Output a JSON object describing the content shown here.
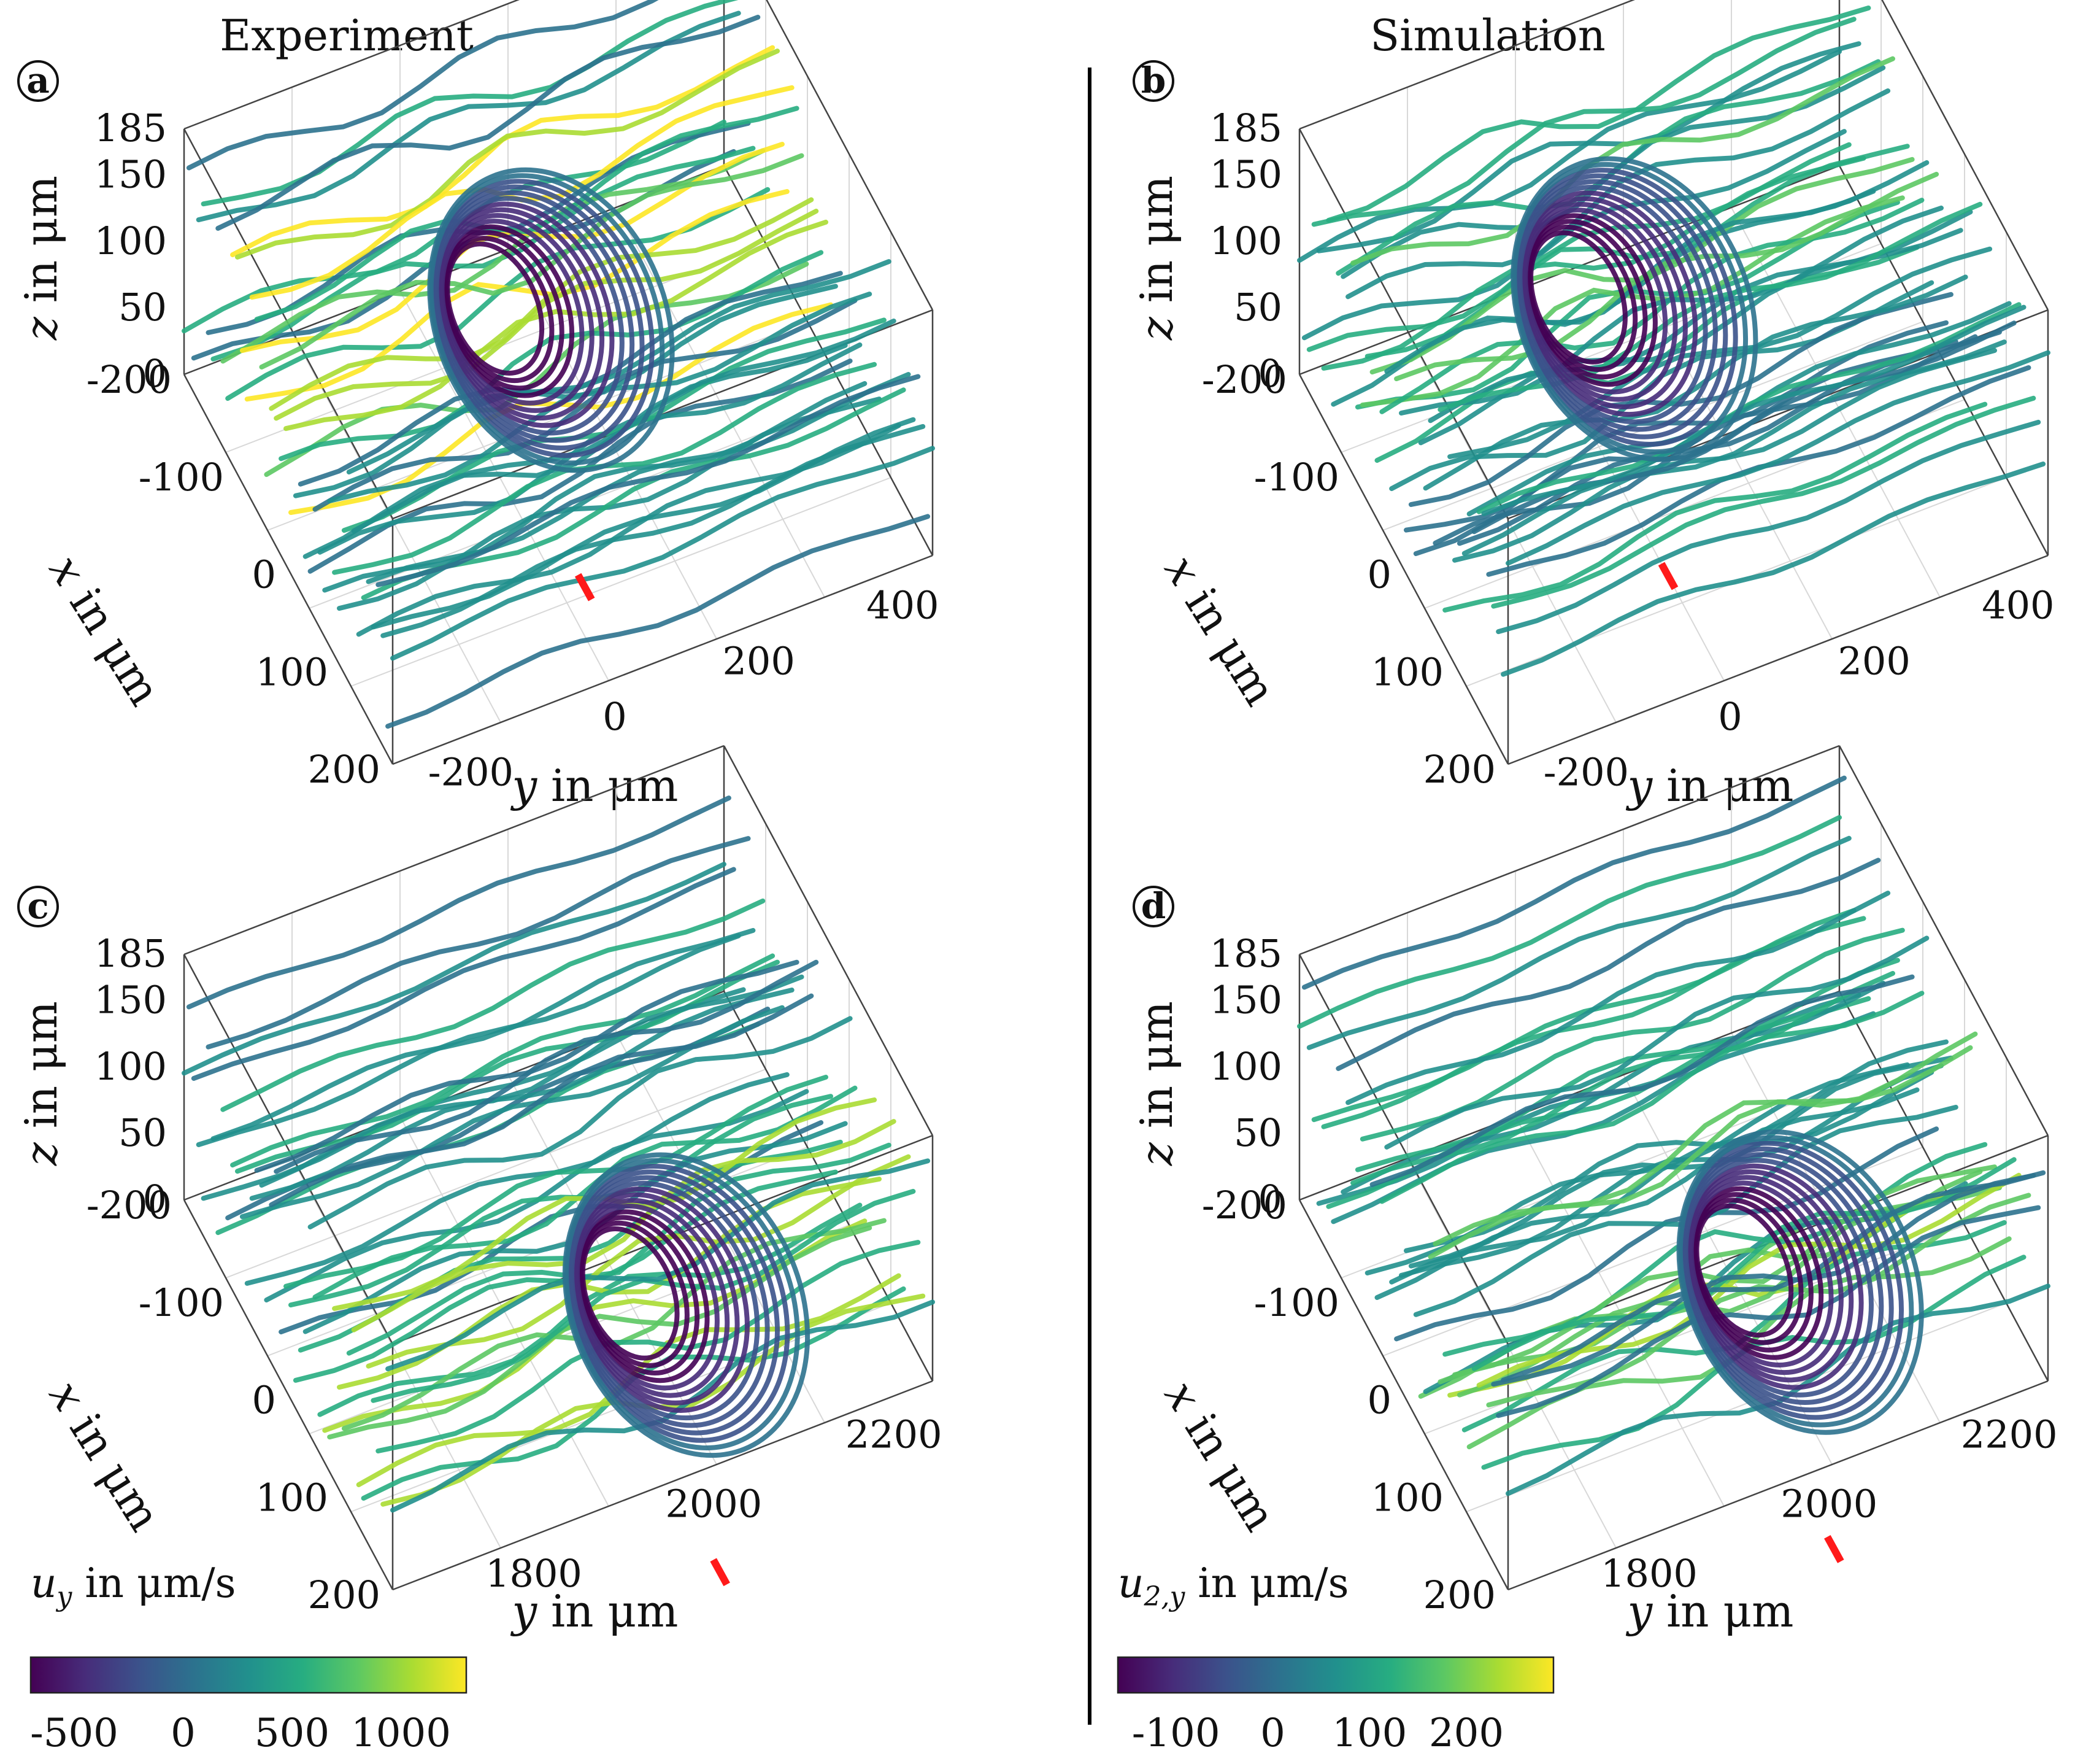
{
  "colors": {
    "viridis": [
      "#440154",
      "#472c7a",
      "#3b528b",
      "#2c728e",
      "#21908d",
      "#27ad81",
      "#5cc863",
      "#aadc32",
      "#fde725"
    ],
    "needle": "#ff1a1a",
    "divider": "#000000"
  },
  "columns": {
    "left": "Experiment",
    "right": "Simulation"
  },
  "colorbars": {
    "experiment": {
      "label_sym": "u",
      "label_sub": "y",
      "label_rest": " in μm/s",
      "ticks": [
        "-500",
        "0",
        "500",
        "1000"
      ]
    },
    "simulation": {
      "label_sym": "u",
      "label_sub": "2,y",
      "label_rest": " in μm/s",
      "ticks": [
        "-100",
        "0",
        "100",
        "200"
      ]
    }
  },
  "chart_data": [
    {
      "panel": "a",
      "type": "streamline-3d",
      "column": "Experiment",
      "xlabel_sym": "x",
      "ylabel_sym": "y",
      "zlabel_sym": "z",
      "unit": " in μm",
      "x_ticks": [
        "-200",
        "-100",
        "0",
        "100",
        "200"
      ],
      "y_ticks": [
        "-200",
        "0",
        "200",
        "400"
      ],
      "z_ticks": [
        "0",
        "50",
        "100",
        "150",
        "185"
      ],
      "ylim": [
        -300,
        450
      ],
      "zlim": [
        0,
        185
      ],
      "vortex": {
        "y": 30,
        "x": -60,
        "color_index": 0
      },
      "jet_color_index": 8
    },
    {
      "panel": "b",
      "type": "streamline-3d",
      "column": "Simulation",
      "xlabel_sym": "x",
      "ylabel_sym": "y",
      "zlabel_sym": "z",
      "unit": " in μm",
      "x_ticks": [
        "-200",
        "-100",
        "0",
        "100",
        "200"
      ],
      "y_ticks": [
        "-200",
        "0",
        "200",
        "400"
      ],
      "z_ticks": [
        "0",
        "50",
        "100",
        "150",
        "185"
      ],
      "ylim": [
        -300,
        450
      ],
      "zlim": [
        0,
        185
      ],
      "vortex": {
        "y": 0,
        "x": -80,
        "color_index": 0
      },
      "jet_color_index": 6
    },
    {
      "panel": "c",
      "type": "streamline-3d",
      "column": "Experiment",
      "xlabel_sym": "x",
      "ylabel_sym": "y",
      "zlabel_sym": "z",
      "unit": " in μm",
      "x_ticks": [
        "-200",
        "-100",
        "0",
        "100",
        "200"
      ],
      "y_ticks": [
        "1800",
        "2000",
        "2200"
      ],
      "z_ticks": [
        "0",
        "50",
        "100",
        "150",
        "185"
      ],
      "ylim": [
        1650,
        2250
      ],
      "zlim": [
        0,
        185
      ],
      "vortex": {
        "y": 1960,
        "x": 120,
        "color_index": 0
      },
      "jet_color_index": 8
    },
    {
      "panel": "d",
      "type": "streamline-3d",
      "column": "Simulation",
      "xlabel_sym": "x",
      "ylabel_sym": "y",
      "zlabel_sym": "z",
      "unit": " in μm",
      "x_ticks": [
        "-200",
        "-100",
        "0",
        "100",
        "200"
      ],
      "y_ticks": [
        "1800",
        "2000",
        "2200"
      ],
      "z_ticks": [
        "0",
        "50",
        "100",
        "150",
        "185"
      ],
      "ylim": [
        1650,
        2250
      ],
      "zlim": [
        0,
        185
      ],
      "vortex": {
        "y": 1970,
        "x": 100,
        "color_index": 0
      },
      "jet_color_index": 7
    }
  ]
}
